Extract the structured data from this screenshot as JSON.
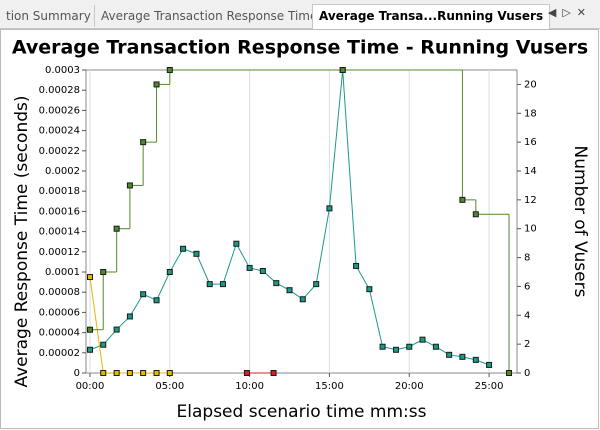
{
  "tabs": [
    "tion Summary",
    "Average Transaction Response Time",
    "Average Transa...Running Vusers"
  ],
  "chart_data": {
    "type": "line",
    "title": "Average Transaction Response Time - Running Vusers",
    "xlabel": "Elapsed scenario time mm:ss",
    "ylabel": "Average Response Time (seconds)",
    "y2label": "Number of Vusers",
    "xlim": [
      -0.25,
      26.75
    ],
    "xticks": [
      {
        "value": 0,
        "label": "00:00"
      },
      {
        "value": 5,
        "label": "05:00"
      },
      {
        "value": 10,
        "label": "10:00"
      },
      {
        "value": 15,
        "label": "15:00"
      },
      {
        "value": 20,
        "label": "20:00"
      },
      {
        "value": 25,
        "label": "25:00"
      }
    ],
    "ylim": [
      0,
      0.0003
    ],
    "yticks": [
      0,
      2e-05,
      4e-05,
      6e-05,
      8e-05,
      0.0001,
      0.00012,
      0.00014,
      0.00016,
      0.00018,
      0.0002,
      0.00022,
      0.00024,
      0.00026,
      0.00028,
      0.0003
    ],
    "y2lim": [
      0,
      21
    ],
    "y2ticks": [
      0,
      2,
      4,
      6,
      8,
      10,
      12,
      14,
      16,
      18,
      20
    ],
    "xgrid": true,
    "series": [
      {
        "color": "#1a9a8a",
        "x": [
          0,
          0.83,
          1.67,
          2.5,
          3.33,
          4.17,
          5,
          5.83,
          6.67,
          7.5,
          8.33,
          9.17,
          10,
          10.83,
          11.67,
          12.5,
          13.33,
          14.17,
          15,
          15.83,
          16.67,
          17.5,
          18.33,
          19.17,
          20,
          20.83,
          21.67,
          22.5,
          23.33,
          24.17,
          25
        ],
        "values": [
          2.3e-05,
          2.8e-05,
          4.3e-05,
          5.6e-05,
          7.8e-05,
          7.2e-05,
          0.0001,
          0.000123,
          0.000118,
          8.8e-05,
          8.8e-05,
          0.000128,
          0.000104,
          0.000101,
          8.9e-05,
          8.2e-05,
          7.3e-05,
          8.8e-05,
          0.000163,
          0.0003,
          0.000106,
          8.3e-05,
          2.6e-05,
          2.3e-05,
          2.6e-05,
          3.3e-05,
          2.6e-05,
          1.8e-05,
          1.6e-05,
          1.3e-05,
          8e-06
        ]
      },
      {
        "color": "#e6b800",
        "x": [
          0,
          0.83,
          1.67,
          2.5,
          3.33,
          4.17,
          5
        ],
        "values": [
          9.5e-05,
          0,
          0,
          0,
          0,
          0,
          0
        ]
      },
      {
        "color": "#d42020",
        "x": [
          9.83,
          11.5
        ],
        "values": [
          0,
          0
        ]
      },
      {
        "color": "#4f8a2a",
        "axis": "y2",
        "step": true,
        "x": [
          0,
          0.83,
          1.67,
          2.5,
          3.33,
          4.17,
          5,
          15.83,
          23.33,
          24.17,
          26.25
        ],
        "values": [
          3,
          7,
          10,
          13,
          16,
          20,
          21,
          21,
          12,
          11,
          0
        ]
      }
    ]
  }
}
